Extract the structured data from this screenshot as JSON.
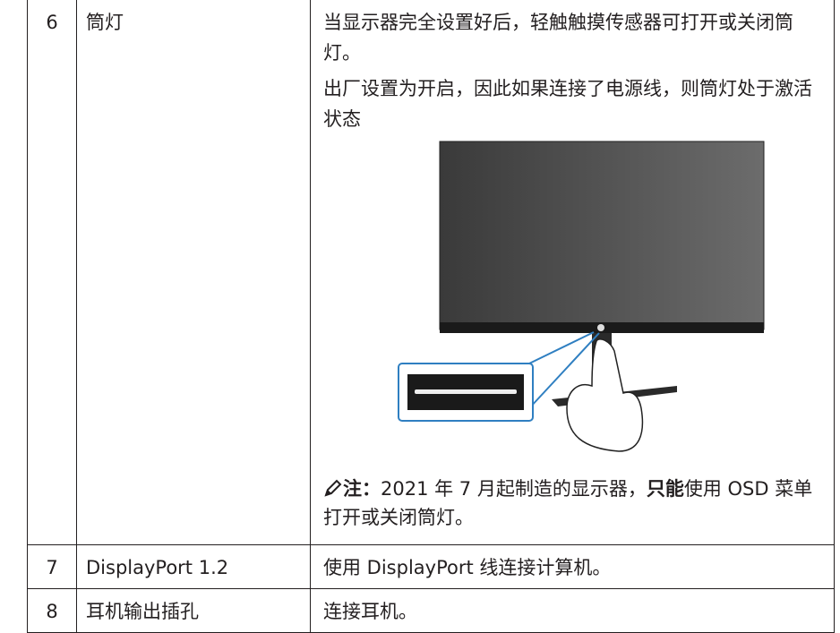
{
  "table": {
    "rows": [
      {
        "number": "6",
        "name": "筒灯",
        "description": [
          "当显示器完全设置好后，轻触触摸传感器可打开或关闭筒灯。",
          "出厂设置为开启，因此如果连接了电源线，则筒灯处于激活状态"
        ],
        "note": {
          "label": "注：",
          "parts": [
            "2021 年 7 月起制造的显示器，",
            "只能",
            "使用 OSD 菜单打开或关闭筒灯。"
          ]
        }
      },
      {
        "number": "7",
        "name": "DisplayPort 1.2",
        "description": [
          "使用 DisplayPort 线连接计算机。"
        ]
      },
      {
        "number": "8",
        "name": "耳机输出插孔",
        "description": [
          "连接耳机。"
        ]
      }
    ]
  }
}
